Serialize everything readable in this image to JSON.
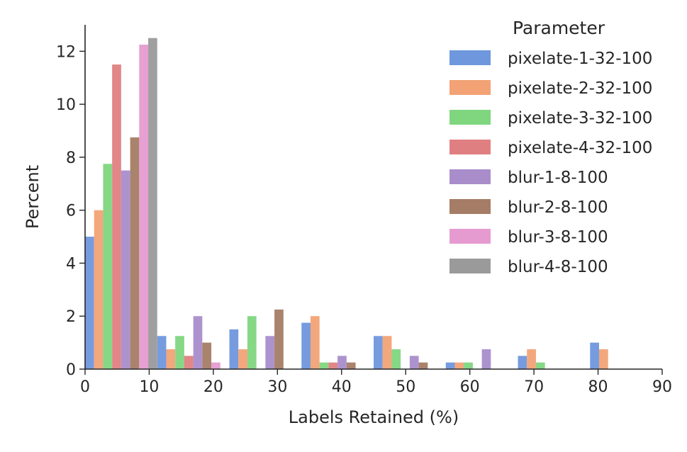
{
  "chart_data": {
    "type": "bar",
    "title": "",
    "xlabel": "Labels Retained (%)",
    "ylabel": "Percent",
    "xlim": [
      0,
      90
    ],
    "ylim": [
      0,
      13
    ],
    "xticks": [
      0,
      10,
      20,
      30,
      40,
      50,
      60,
      70,
      80,
      90
    ],
    "yticks": [
      0,
      2,
      4,
      6,
      8,
      10,
      12
    ],
    "bin_starts": [
      0,
      11.25,
      22.5,
      33.75,
      45,
      56.25,
      67.5,
      78.75
    ],
    "bin_width": 11.25,
    "legend": {
      "title": "Parameter",
      "placement": "top-right"
    },
    "series": [
      {
        "name": "pixelate-1-32-100",
        "color": "#6f97dd",
        "values": [
          5,
          1.25,
          1.5,
          1.75,
          1.25,
          0.25,
          0.5,
          1.0
        ]
      },
      {
        "name": "pixelate-2-32-100",
        "color": "#f2a275",
        "values": [
          6,
          0.75,
          0.75,
          2.0,
          1.25,
          0.25,
          0.75,
          0.75
        ]
      },
      {
        "name": "pixelate-3-32-100",
        "color": "#7fd67f",
        "values": [
          7.75,
          1.25,
          2.0,
          0.25,
          0.75,
          0.25,
          0.25,
          0
        ]
      },
      {
        "name": "pixelate-4-32-100",
        "color": "#e07f81",
        "values": [
          11.5,
          0.5,
          0,
          0.25,
          0,
          0,
          0,
          0
        ]
      },
      {
        "name": "blur-1-8-100",
        "color": "#a98dcb",
        "values": [
          7.5,
          2.0,
          1.25,
          0.5,
          0.5,
          0.75,
          0,
          0
        ]
      },
      {
        "name": "blur-2-8-100",
        "color": "#a57c65",
        "values": [
          8.75,
          1.0,
          2.25,
          0.25,
          0.25,
          0,
          0,
          0
        ]
      },
      {
        "name": "blur-3-8-100",
        "color": "#e69bd0",
        "values": [
          12.25,
          0.25,
          0,
          0,
          0,
          0,
          0,
          0
        ]
      },
      {
        "name": "blur-4-8-100",
        "color": "#9a9a9a",
        "values": [
          12.5,
          0,
          0,
          0,
          0,
          0,
          0,
          0
        ]
      }
    ]
  }
}
